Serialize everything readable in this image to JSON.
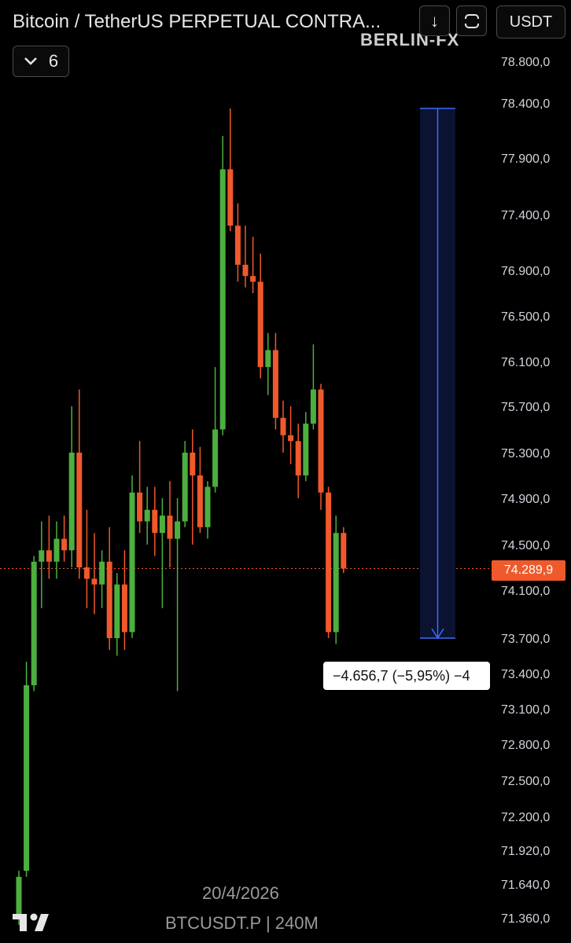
{
  "header": {
    "title": "Bitcoin / TetherUS PERPETUAL CONTRA...",
    "watermark": "BERLIN-FX",
    "currency_button": "USDT",
    "down_button_icon": "arrow-down-icon",
    "fullscreen_button_icon": "fullscreen-icon",
    "collapse_count": "6"
  },
  "footer": {
    "date": "20/4/2026",
    "symbol": "BTCUSDT.P | 240M"
  },
  "colors": {
    "up": "#4caf3f",
    "down": "#f0592b",
    "measure": "#3d6bff",
    "price_line": "#f0592b"
  },
  "measure": {
    "label": "−4.656,7 (−5,95%) −4",
    "from_price": 78350,
    "to_price": 73700
  },
  "chart_data": {
    "type": "candlestick",
    "y_ticks": [
      "78.800,0",
      "78.400,0",
      "77.900,0",
      "77.400,0",
      "76.900,0",
      "76.500,0",
      "76.100,0",
      "75.700,0",
      "75.300,0",
      "74.900,0",
      "74.500,0",
      "74.100,0",
      "73.700,0",
      "73.400,0",
      "73.100,0",
      "72.800,0",
      "72.500,0",
      "72.200,0",
      "71.920,0",
      "71.640,0",
      "71.360,0"
    ],
    "y_tick_values": [
      78800,
      78400,
      77900,
      77400,
      76900,
      76500,
      76100,
      75700,
      75300,
      74900,
      74500,
      74100,
      73700,
      73400,
      73100,
      72800,
      72500,
      72200,
      71920,
      71640,
      71360
    ],
    "current_price_label": "74.289,9",
    "current_price": 74289.9,
    "candles": [
      {
        "o": 71350,
        "h": 71750,
        "l": 71300,
        "c": 71700
      },
      {
        "o": 71750,
        "h": 73500,
        "l": 71700,
        "c": 73300
      },
      {
        "o": 73300,
        "h": 74400,
        "l": 73250,
        "c": 74350
      },
      {
        "o": 74350,
        "h": 74700,
        "l": 73950,
        "c": 74450
      },
      {
        "o": 74450,
        "h": 74750,
        "l": 74200,
        "c": 74350
      },
      {
        "o": 74350,
        "h": 74700,
        "l": 74200,
        "c": 74550
      },
      {
        "o": 74550,
        "h": 74750,
        "l": 74350,
        "c": 74450
      },
      {
        "o": 74450,
        "h": 75700,
        "l": 74300,
        "c": 75300
      },
      {
        "o": 75300,
        "h": 75850,
        "l": 74200,
        "c": 74300
      },
      {
        "o": 74300,
        "h": 74800,
        "l": 73950,
        "c": 74200
      },
      {
        "o": 74200,
        "h": 74600,
        "l": 73900,
        "c": 74150
      },
      {
        "o": 74150,
        "h": 74450,
        "l": 73950,
        "c": 74350
      },
      {
        "o": 74350,
        "h": 74650,
        "l": 73600,
        "c": 73700
      },
      {
        "o": 73700,
        "h": 74250,
        "l": 73550,
        "c": 74150
      },
      {
        "o": 74150,
        "h": 74450,
        "l": 73600,
        "c": 73750
      },
      {
        "o": 73750,
        "h": 75100,
        "l": 73700,
        "c": 74950
      },
      {
        "o": 74950,
        "h": 75400,
        "l": 74600,
        "c": 74700
      },
      {
        "o": 74700,
        "h": 75000,
        "l": 74500,
        "c": 74800
      },
      {
        "o": 74800,
        "h": 75000,
        "l": 74400,
        "c": 74600
      },
      {
        "o": 74600,
        "h": 74900,
        "l": 73950,
        "c": 74750
      },
      {
        "o": 74750,
        "h": 75050,
        "l": 74300,
        "c": 74550
      },
      {
        "o": 74550,
        "h": 74900,
        "l": 73250,
        "c": 74700
      },
      {
        "o": 74700,
        "h": 75400,
        "l": 74650,
        "c": 75300
      },
      {
        "o": 75300,
        "h": 75500,
        "l": 74500,
        "c": 75100
      },
      {
        "o": 75100,
        "h": 75350,
        "l": 74600,
        "c": 74650
      },
      {
        "o": 74650,
        "h": 75050,
        "l": 74550,
        "c": 75000
      },
      {
        "o": 75000,
        "h": 76050,
        "l": 74950,
        "c": 75500
      },
      {
        "o": 75500,
        "h": 78100,
        "l": 75450,
        "c": 77800
      },
      {
        "o": 77800,
        "h": 78350,
        "l": 77250,
        "c": 77300
      },
      {
        "o": 77300,
        "h": 77500,
        "l": 76800,
        "c": 76950
      },
      {
        "o": 76950,
        "h": 77300,
        "l": 76750,
        "c": 76850
      },
      {
        "o": 76850,
        "h": 77200,
        "l": 76700,
        "c": 76800
      },
      {
        "o": 76800,
        "h": 77050,
        "l": 75950,
        "c": 76050
      },
      {
        "o": 76050,
        "h": 76350,
        "l": 75800,
        "c": 76200
      },
      {
        "o": 76200,
        "h": 76350,
        "l": 75500,
        "c": 75600
      },
      {
        "o": 75600,
        "h": 75750,
        "l": 75300,
        "c": 75450
      },
      {
        "o": 75450,
        "h": 75700,
        "l": 75200,
        "c": 75400
      },
      {
        "o": 75400,
        "h": 75550,
        "l": 74900,
        "c": 75100
      },
      {
        "o": 75100,
        "h": 75650,
        "l": 75050,
        "c": 75550
      },
      {
        "o": 75550,
        "h": 76250,
        "l": 75500,
        "c": 75850
      },
      {
        "o": 75850,
        "h": 75900,
        "l": 74800,
        "c": 74950
      },
      {
        "o": 74950,
        "h": 75000,
        "l": 73700,
        "c": 73750
      },
      {
        "o": 73750,
        "h": 74750,
        "l": 73650,
        "c": 74600
      },
      {
        "o": 74600,
        "h": 74650,
        "l": 74250,
        "c": 74290
      }
    ]
  }
}
